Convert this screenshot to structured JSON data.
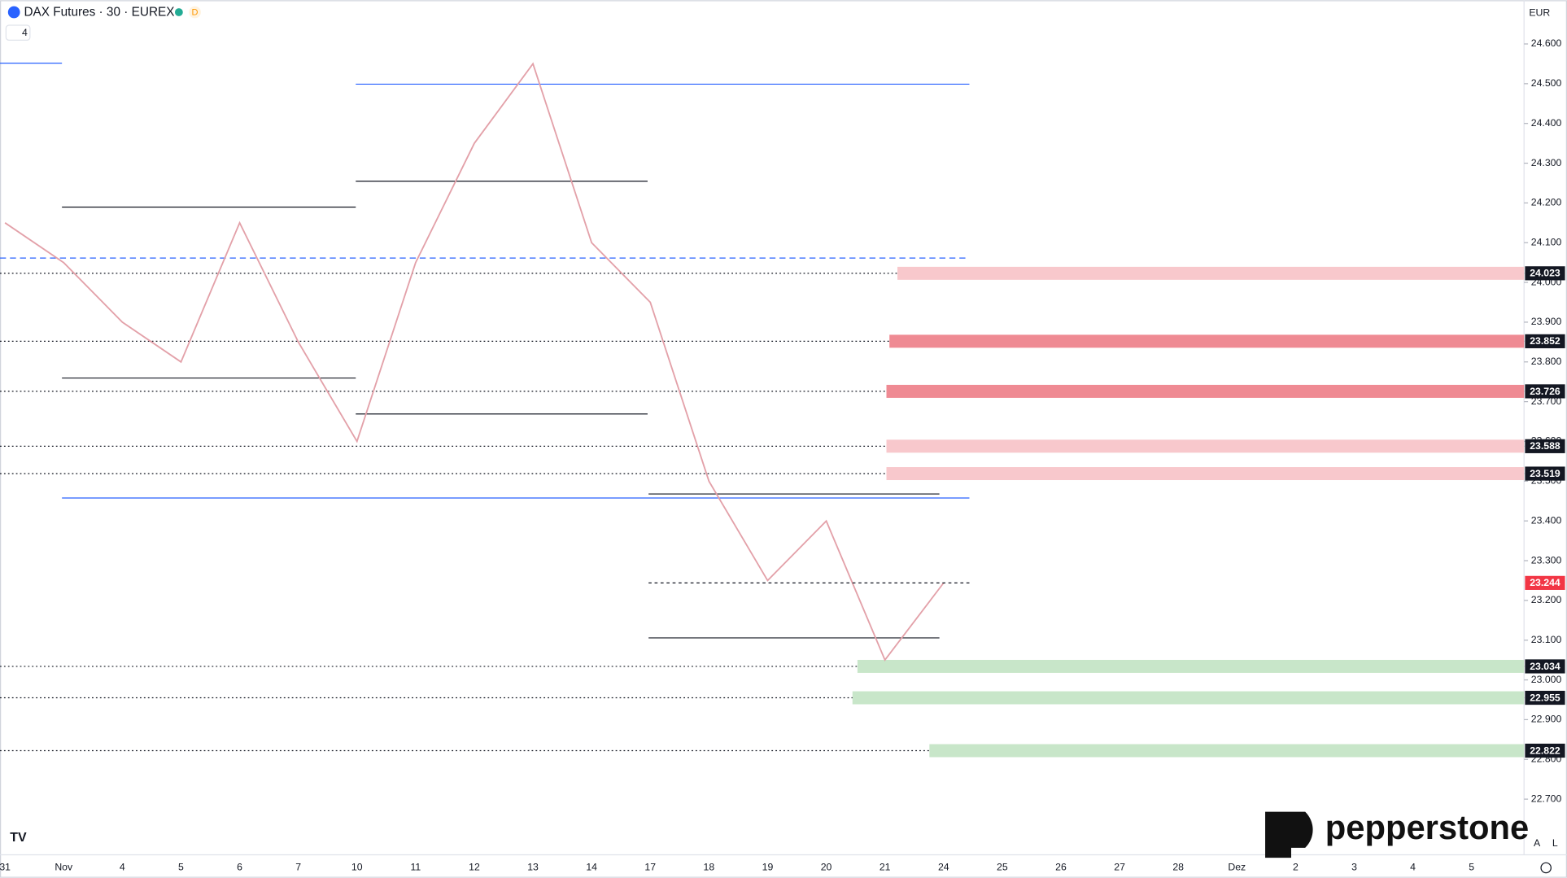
{
  "header": {
    "title": "DAX Futures · 30 · EUREX",
    "badge": "D",
    "indicator_count": "4"
  },
  "currency": "EUR",
  "watermark": "pepperstone",
  "scale_buttons": [
    "A",
    "L"
  ],
  "chart_data": {
    "type": "line",
    "categories": [
      "31",
      "Nov",
      "4",
      "5",
      "6",
      "7",
      "10",
      "11",
      "12",
      "13",
      "14",
      "17",
      "18",
      "19",
      "20",
      "21",
      "24",
      "25",
      "26",
      "27",
      "28",
      "Dez",
      "2",
      "3",
      "4",
      "5"
    ],
    "values": [
      24150,
      24050,
      23900,
      23800,
      24150,
      23850,
      23600,
      24050,
      24350,
      24550,
      24100,
      23950,
      23500,
      23250,
      23400,
      23050,
      23244,
      null,
      null,
      null,
      null,
      null,
      null,
      null,
      null,
      null
    ],
    "color": "#e3a1a9",
    "ylim": [
      22560,
      24710
    ],
    "yticks": [
      {
        "value": 22700,
        "label": "22.700"
      },
      {
        "value": 22800,
        "label": "22.800"
      },
      {
        "value": 22900,
        "label": "22.900"
      },
      {
        "value": 23000,
        "label": "23.000"
      },
      {
        "value": 23100,
        "label": "23.100"
      },
      {
        "value": 23200,
        "label": "23.200"
      },
      {
        "value": 23300,
        "label": "23.300"
      },
      {
        "value": 23400,
        "label": "23.400"
      },
      {
        "value": 23500,
        "label": "23.500"
      },
      {
        "value": 23600,
        "label": "23.600"
      },
      {
        "value": 23700,
        "label": "23.700"
      },
      {
        "value": 23800,
        "label": "23.800"
      },
      {
        "value": 23900,
        "label": "23.900"
      },
      {
        "value": 24000,
        "label": "24.000"
      },
      {
        "value": 24100,
        "label": "24.100"
      },
      {
        "value": 24200,
        "label": "24.200"
      },
      {
        "value": 24300,
        "label": "24.300"
      },
      {
        "value": 24400,
        "label": "24.400"
      },
      {
        "value": 24500,
        "label": "24.500"
      },
      {
        "value": 24600,
        "label": "24.600"
      }
    ],
    "levels": [
      {
        "value": 24023,
        "label": "24.023",
        "color": "#f8c8cc"
      },
      {
        "value": 23852,
        "label": "23.852",
        "color": "#ef8a93"
      },
      {
        "value": 23726,
        "label": "23.726",
        "color": "#ef8a93"
      },
      {
        "value": 23588,
        "label": "23.588",
        "color": "#f8c8cc"
      },
      {
        "value": 23519,
        "label": "23.519",
        "color": "#f8c8cc"
      },
      {
        "value": 23034,
        "label": "23.034",
        "color": "#c8e6c9"
      },
      {
        "value": 22955,
        "label": "22.955",
        "color": "#c8e6c9"
      },
      {
        "value": 22822,
        "label": "22.822",
        "color": "#c8e6c9"
      }
    ],
    "last_price": {
      "value": 23244,
      "label": "23.244",
      "color": "#f23645"
    }
  }
}
